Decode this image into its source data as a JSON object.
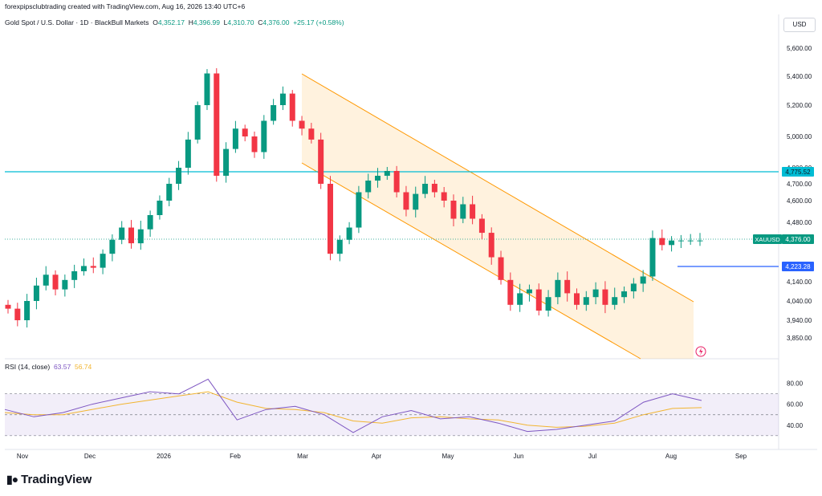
{
  "header": {
    "attribution": "forexpipsclubtrading created with TradingView.com, Aug 16, 2026 13:40 UTC+6"
  },
  "legend": {
    "symbol_name": "Gold Spot / U.S. Dollar · 1D · BlackBull Markets",
    "o_label": "O",
    "o": "4,352.17",
    "h_label": "H",
    "h": "4,396.99",
    "l_label": "L",
    "l": "4,310.70",
    "c_label": "C",
    "c": "4,376.00",
    "change": "+25.17 (+0.58%)"
  },
  "currency_button": "USD",
  "price_axis": {
    "ticks": [
      {
        "label": "5,600.00",
        "value": 5600
      },
      {
        "label": "5,400.00",
        "value": 5400
      },
      {
        "label": "5,200.00",
        "value": 5200
      },
      {
        "label": "5,000.00",
        "value": 5000
      },
      {
        "label": "4,800.00",
        "value": 4800
      },
      {
        "label": "4,700.00",
        "value": 4700
      },
      {
        "label": "4,600.00",
        "value": 4600
      },
      {
        "label": "4,480.00",
        "value": 4480
      },
      {
        "label": "4,140.00",
        "value": 4140
      },
      {
        "label": "4,040.00",
        "value": 4040
      },
      {
        "label": "3,940.00",
        "value": 3940
      },
      {
        "label": "3,850.00",
        "value": 3850
      }
    ]
  },
  "price_labels": {
    "resistance": "4,775.52",
    "symbol_tag": "XAUUSD",
    "last_price": "4,376.00",
    "support": "4,223.28"
  },
  "rsi": {
    "legend_title": "RSI (14, close)",
    "value": "63.57",
    "ma_value": "56.74",
    "ticks": [
      {
        "label": "80.00",
        "value": 80
      },
      {
        "label": "60.00",
        "value": 60
      },
      {
        "label": "40.00",
        "value": 40
      }
    ]
  },
  "time_axis": [
    "Nov",
    "Dec",
    "2026",
    "Feb",
    "Mar",
    "Apr",
    "May",
    "Jun",
    "Jul",
    "Aug",
    "Sep"
  ],
  "brand": "TradingView",
  "colors": {
    "up": "#089981",
    "down": "#f23645",
    "channel": "#ff9800",
    "resistance": "#00bcd4",
    "support": "#2962ff",
    "rsi": "#7e57c2",
    "rsi_ma": "#f2b531"
  },
  "chart_data": [
    {
      "type": "candlestick",
      "title": "Gold Spot / U.S. Dollar · 1D · BlackBull Markets",
      "x": [
        "Oct 27",
        "Oct 31",
        "Nov 4",
        "Nov 8",
        "Nov 12",
        "Nov 16",
        "Nov 20",
        "Nov 24",
        "Nov 28",
        "Dec 2",
        "Dec 6",
        "Dec 10",
        "Dec 14",
        "Dec 18",
        "Dec 22",
        "Dec 26",
        "Dec 30",
        "Jan 3",
        "Jan 7",
        "Jan 11",
        "Jan 15",
        "Jan 19",
        "Jan 23",
        "Jan 27",
        "Jan 31",
        "Feb 4",
        "Feb 8",
        "Feb 12",
        "Feb 16",
        "Feb 20",
        "Feb 24",
        "Feb 28",
        "Mar 4",
        "Mar 8",
        "Mar 12",
        "Mar 16",
        "Mar 20",
        "Mar 24",
        "Mar 28",
        "Apr 1",
        "Apr 5",
        "Apr 9",
        "Apr 13",
        "Apr 17",
        "Apr 21",
        "Apr 25",
        "Apr 29",
        "May 3",
        "May 7",
        "May 11",
        "May 15",
        "May 19",
        "May 23",
        "May 27",
        "May 31",
        "Jun 4",
        "Jun 8",
        "Jun 12",
        "Jun 16",
        "Jun 20",
        "Jun 24",
        "Jun 28",
        "Jul 2",
        "Jul 6",
        "Jul 10",
        "Jul 14",
        "Jul 18",
        "Jul 22",
        "Jul 26",
        "Jul 30",
        "Aug 3",
        "Aug 7",
        "Aug 11",
        "Aug 14"
      ],
      "close": [
        4000,
        3940,
        4040,
        4120,
        4180,
        4100,
        4150,
        4200,
        4230,
        4220,
        4300,
        4380,
        4450,
        4360,
        4440,
        4520,
        4600,
        4700,
        4800,
        4980,
        5200,
        5420,
        4750,
        4920,
        5050,
        5000,
        4900,
        5100,
        5200,
        5280,
        5100,
        5050,
        4980,
        4700,
        4300,
        4380,
        4450,
        4650,
        4720,
        4750,
        4780,
        4650,
        4550,
        4640,
        4700,
        4650,
        4600,
        4500,
        4580,
        4500,
        4420,
        4280,
        4150,
        4020,
        4080,
        4100,
        3990,
        4060,
        4150,
        4080,
        4020,
        4060,
        4100,
        4020,
        4060,
        4090,
        4130,
        4170,
        4390,
        4350,
        4376,
        4376,
        4376,
        4376
      ],
      "ylim": [
        3800,
        5650
      ]
    },
    {
      "type": "line",
      "title": "RSI (14, close)",
      "x": [
        "Oct 27",
        "Nov 10",
        "Nov 24",
        "Dec 8",
        "Dec 22",
        "Jan 5",
        "Jan 19",
        "Jan 26",
        "Feb 2",
        "Feb 16",
        "Mar 2",
        "Mar 16",
        "Mar 23",
        "Apr 6",
        "Apr 20",
        "May 4",
        "May 18",
        "Jun 1",
        "Jun 15",
        "Jun 29",
        "Jul 13",
        "Jul 27",
        "Aug 3",
        "Aug 10",
        "Aug 14"
      ],
      "series": [
        {
          "name": "RSI",
          "values": [
            55,
            48,
            52,
            60,
            66,
            72,
            70,
            84,
            45,
            55,
            58,
            50,
            33,
            48,
            54,
            46,
            48,
            42,
            34,
            36,
            40,
            44,
            62,
            70,
            63.57
          ]
        },
        {
          "name": "MA",
          "values": [
            52,
            50,
            50,
            55,
            60,
            64,
            68,
            72,
            62,
            56,
            55,
            52,
            44,
            42,
            47,
            48,
            46,
            45,
            40,
            38,
            39,
            42,
            50,
            56,
            56.74
          ]
        }
      ],
      "ylim": [
        26,
        92
      ],
      "bands": [
        30,
        50,
        70
      ]
    }
  ]
}
